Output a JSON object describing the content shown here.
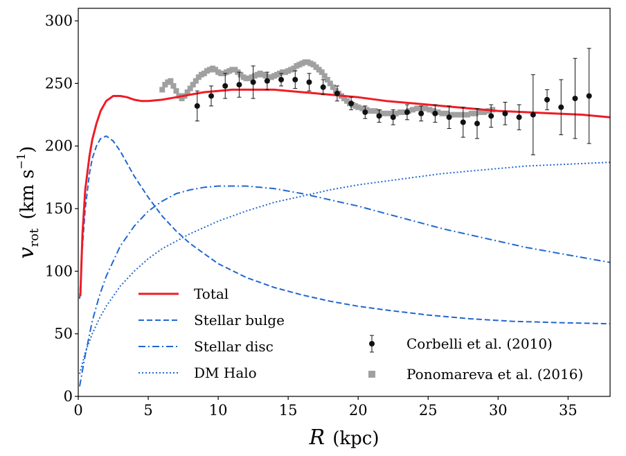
{
  "chart_data": {
    "type": "line",
    "xlabel": {
      "symbol": "R",
      "unit": "(kpc)"
    },
    "ylabel": {
      "symbol": "v",
      "subscript": "rot",
      "unit": "(km s",
      "unit_sup": "−1",
      "unit_close": ")"
    },
    "xlim": [
      0,
      38
    ],
    "ylim": [
      0,
      310
    ],
    "xticks": [
      0,
      5,
      10,
      15,
      20,
      25,
      30,
      35
    ],
    "yticks": [
      0,
      50,
      100,
      150,
      200,
      250,
      300
    ],
    "grid": false,
    "legend_left_placement": "lower-left",
    "legend_right_placement": "lower-right",
    "series": [
      {
        "name": "Total",
        "style": "solid",
        "color": "#ee1c25",
        "x": [
          0.15,
          0.3,
          0.5,
          0.8,
          1.0,
          1.3,
          1.6,
          2.0,
          2.5,
          3.0,
          3.5,
          4.0,
          4.5,
          5.0,
          6.0,
          7.0,
          8.0,
          9.0,
          10.0,
          11.0,
          12.0,
          13.0,
          14.0,
          15.0,
          16.0,
          17.0,
          18.0,
          19.0,
          20.0,
          22.0,
          24.0,
          26.0,
          28.0,
          30.0,
          32.0,
          34.0,
          36.0,
          38.0
        ],
        "y": [
          80,
          130,
          165,
          192,
          205,
          218,
          228,
          236,
          240,
          240,
          239,
          237,
          236,
          236,
          237,
          239,
          241,
          243,
          244,
          245,
          245,
          245,
          245,
          244,
          243,
          242,
          241,
          240,
          239,
          236,
          234,
          232,
          230,
          228,
          227,
          226,
          225,
          223
        ]
      },
      {
        "name": "Stellar bulge",
        "style": "dashed",
        "color": "#1f66d1",
        "x": [
          0.1,
          0.3,
          0.5,
          0.8,
          1.0,
          1.3,
          1.6,
          2.0,
          2.5,
          3.0,
          3.5,
          4.0,
          5.0,
          6.0,
          7.0,
          8.0,
          10.0,
          12.0,
          14.0,
          16.0,
          18.0,
          20.0,
          22.0,
          25.0,
          28.0,
          31.0,
          34.0,
          38.0
        ],
        "y": [
          78,
          120,
          150,
          178,
          190,
          200,
          206,
          208,
          204,
          196,
          186,
          176,
          159,
          144,
          132,
          122,
          106,
          95,
          87,
          81,
          76,
          72,
          69,
          65,
          62,
          60,
          59,
          58
        ]
      },
      {
        "name": "Stellar disc",
        "style": "dashdot",
        "color": "#1f66d1",
        "x": [
          0.1,
          0.5,
          1.0,
          1.5,
          2.0,
          3.0,
          4.0,
          5.0,
          6.0,
          7.0,
          8.0,
          9.0,
          10.0,
          11.0,
          12.0,
          13.0,
          14.0,
          16.0,
          18.0,
          20.0,
          22.0,
          24.0,
          26.0,
          28.0,
          30.0,
          32.0,
          34.0,
          36.0,
          38.0
        ],
        "y": [
          8,
          33,
          60,
          80,
          96,
          120,
          136,
          148,
          156,
          162,
          165,
          167,
          168,
          168,
          168,
          167,
          166,
          162,
          157,
          152,
          146,
          140,
          134,
          129,
          124,
          119,
          115,
          111,
          107
        ]
      },
      {
        "name": "DM Halo",
        "style": "dotted",
        "color": "#1f66d1",
        "x": [
          0.1,
          0.5,
          1.0,
          1.5,
          2.0,
          3.0,
          4.0,
          5.0,
          6.0,
          7.0,
          8.0,
          10.0,
          12.0,
          14.0,
          16.0,
          18.0,
          20.0,
          22.0,
          24.0,
          26.0,
          28.0,
          30.0,
          32.0,
          34.0,
          36.0,
          38.0
        ],
        "y": [
          18,
          35,
          50,
          62,
          72,
          88,
          100,
          110,
          118,
          124,
          130,
          140,
          148,
          155,
          160,
          165,
          169,
          172,
          175,
          178,
          180,
          182,
          184,
          185,
          186,
          187
        ]
      },
      {
        "name": "Corbelli et al. (2010)",
        "style": "errorbar",
        "color": "#111111",
        "x": [
          8.5,
          9.5,
          10.5,
          11.5,
          12.5,
          13.5,
          14.5,
          15.5,
          16.5,
          17.5,
          18.5,
          19.5,
          20.5,
          21.5,
          22.5,
          23.5,
          24.5,
          25.5,
          26.5,
          27.5,
          28.5,
          29.5,
          30.5,
          31.5,
          32.5,
          33.5,
          34.5,
          35.5,
          36.5
        ],
        "y": [
          232,
          240,
          248,
          249,
          251,
          252,
          253,
          253,
          251,
          247,
          242,
          234,
          227,
          224,
          223,
          227,
          226,
          226,
          223,
          219,
          218,
          224,
          226,
          223,
          225,
          237,
          231,
          238,
          240
        ],
        "err": [
          12,
          8,
          10,
          10,
          13,
          7,
          5,
          7,
          7,
          6,
          6,
          5,
          5,
          5,
          6,
          6,
          6,
          7,
          9,
          12,
          12,
          9,
          9,
          10,
          32,
          8,
          22,
          32,
          38
        ]
      },
      {
        "name": "Ponomareva et al. (2016)",
        "style": "squares",
        "color": "#a0a0a0",
        "x": [
          6.0,
          6.2,
          6.4,
          6.6,
          6.8,
          7.0,
          7.2,
          7.4,
          7.6,
          7.8,
          8.0,
          8.2,
          8.4,
          8.6,
          8.8,
          9.0,
          9.2,
          9.4,
          9.6,
          9.8,
          10.0,
          10.2,
          10.4,
          10.6,
          10.8,
          11.0,
          11.2,
          11.4,
          11.6,
          11.8,
          12.0,
          12.2,
          12.4,
          12.6,
          12.8,
          13.0,
          13.2,
          13.4,
          13.6,
          13.8,
          14.0,
          14.2,
          14.4,
          14.6,
          14.8,
          15.0,
          15.2,
          15.4,
          15.6,
          15.8,
          16.0,
          16.2,
          16.4,
          16.6,
          16.8,
          17.0,
          17.2,
          17.4,
          17.6,
          17.8,
          18.0,
          18.2,
          18.4,
          18.6,
          18.8,
          19.0,
          19.2,
          19.4,
          19.6,
          19.8,
          20.0,
          20.3,
          20.6,
          20.9,
          21.2,
          21.5,
          21.8,
          22.1,
          22.4,
          22.7,
          23.0,
          23.3,
          23.6,
          23.9,
          24.2,
          24.5,
          24.8,
          25.1,
          25.4,
          25.7,
          26.0,
          26.3,
          26.6,
          26.9,
          27.2,
          27.5,
          27.8,
          28.1,
          28.4,
          28.7,
          29.0,
          29.3,
          29.6
        ],
        "y": [
          245,
          249,
          251,
          252,
          248,
          244,
          240,
          238,
          240,
          243,
          246,
          249,
          252,
          255,
          257,
          258,
          260,
          261,
          262,
          261,
          259,
          258,
          258,
          259,
          260,
          261,
          261,
          259,
          257,
          255,
          254,
          254,
          255,
          256,
          257,
          258,
          257,
          256,
          255,
          255,
          256,
          257,
          258,
          259,
          259,
          260,
          261,
          262,
          264,
          265,
          266,
          267,
          267,
          266,
          265,
          263,
          261,
          259,
          256,
          253,
          250,
          247,
          244,
          242,
          240,
          238,
          236,
          234,
          233,
          232,
          231,
          230,
          229,
          228,
          228,
          227,
          226,
          226,
          226,
          226,
          227,
          227,
          228,
          229,
          230,
          230,
          230,
          229,
          228,
          227,
          226,
          226,
          225,
          225,
          225,
          225,
          225,
          226,
          226,
          227,
          227,
          228,
          229
        ]
      }
    ]
  }
}
